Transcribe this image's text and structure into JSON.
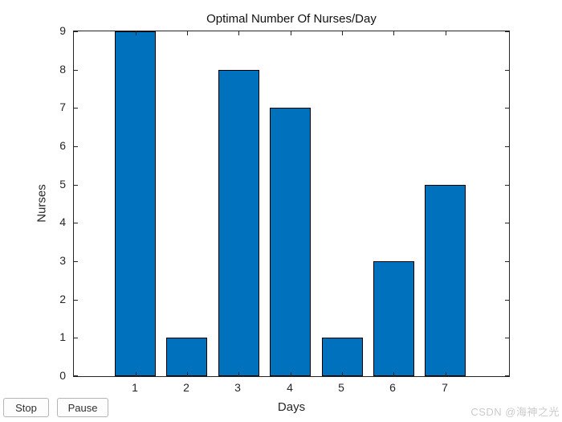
{
  "chart_data": {
    "type": "bar",
    "title": "Optimal Number Of Nurses/Day",
    "xlabel": "Days",
    "ylabel": "Nurses",
    "categories": [
      "1",
      "2",
      "3",
      "4",
      "5",
      "6",
      "7"
    ],
    "values": [
      9,
      1,
      8,
      7,
      1,
      3,
      5
    ],
    "ylim": [
      0,
      9
    ],
    "yticks": [
      0,
      1,
      2,
      3,
      4,
      5,
      6,
      7,
      8,
      9
    ],
    "xlim": [
      -0.19,
      8.23
    ],
    "bar_width_units": 0.8,
    "bar_color": "#0072BD",
    "bar_edge_color": "#000000",
    "axis_color": "#262626",
    "grid": false,
    "legend_position": "none",
    "tick_direction": "in"
  },
  "controls": {
    "stop_label": "Stop",
    "pause_label": "Pause"
  },
  "watermark": {
    "text": "CSDN @海神之光"
  }
}
